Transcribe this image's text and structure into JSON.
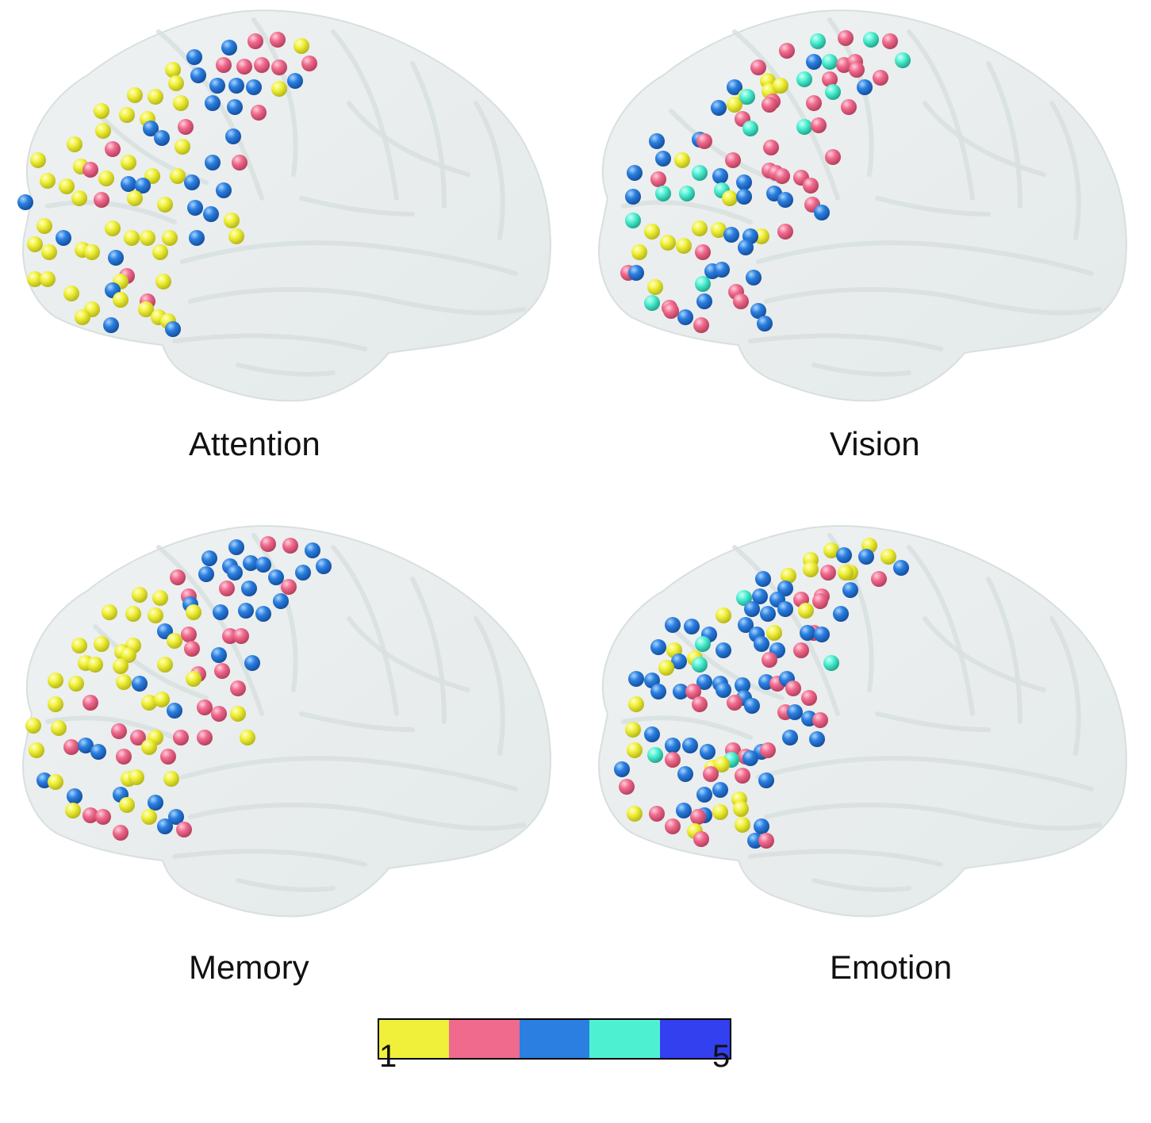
{
  "panels": [
    {
      "id": "attention",
      "title": "Attention"
    },
    {
      "id": "vision",
      "title": "Vision"
    },
    {
      "id": "memory",
      "title": "Memory"
    },
    {
      "id": "emotion",
      "title": "Emotion"
    }
  ],
  "legend": {
    "min_label": "1",
    "max_label": "5",
    "colors": [
      "#f0f03a",
      "#f06a8e",
      "#2a7fe0",
      "#4ef0d2",
      "#3240f0"
    ]
  }
}
